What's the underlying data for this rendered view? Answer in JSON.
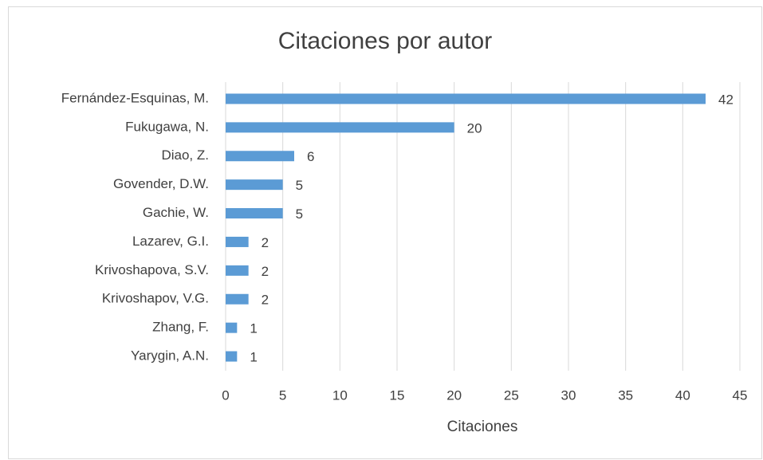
{
  "chart_data": {
    "type": "barh",
    "title": "Citaciones por autor",
    "x_label": "Citaciones",
    "categories": [
      "Fernández-Esquinas, M.",
      "Fukugawa, N.",
      "Diao, Z.",
      "Govender, D.W.",
      "Gachie, W.",
      "Lazarev, G.I.",
      "Krivoshapova, S.V.",
      "Krivoshapov, V.G.",
      "Zhang, F.",
      "Yarygin, A.N."
    ],
    "values": [
      42,
      20,
      6,
      5,
      5,
      2,
      2,
      2,
      1,
      1
    ],
    "color": "#5b9bd5",
    "xlim": [
      0,
      45
    ],
    "xticks": [
      0,
      5,
      10,
      15,
      20,
      25,
      30,
      35,
      40,
      45
    ],
    "grid": true,
    "data_labels": true
  }
}
